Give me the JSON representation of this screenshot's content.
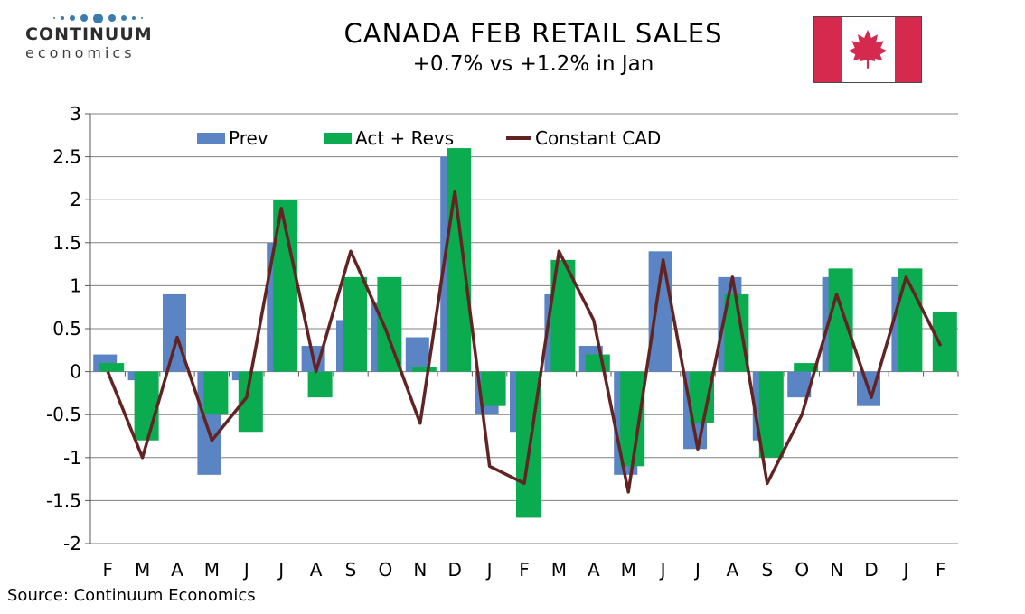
{
  "logo": {
    "line1": "CONTINUUM",
    "line2": "economics"
  },
  "header": {
    "title": "CANADA FEB RETAIL SALES",
    "subtitle": "+0.7% vs +1.2% in Jan"
  },
  "flag": {
    "name": "canada-flag",
    "red": "#d5294d",
    "white": "#ffffff"
  },
  "source": "Source: Continuum Economics",
  "chart_data": {
    "type": "combo",
    "categories": [
      "F",
      "M",
      "A",
      "M",
      "J",
      "J",
      "A",
      "S",
      "O",
      "N",
      "D",
      "J",
      "F",
      "M",
      "A",
      "M",
      "J",
      "J",
      "A",
      "S",
      "O",
      "N",
      "D",
      "J",
      "F"
    ],
    "series": [
      {
        "name": "Prev",
        "type": "bar",
        "color": "#5b84c4",
        "values": [
          0.2,
          -0.1,
          0.9,
          -1.2,
          -0.1,
          1.5,
          0.3,
          0.6,
          0.8,
          0.4,
          2.5,
          -0.5,
          -0.7,
          0.9,
          0.3,
          -1.2,
          1.4,
          -0.9,
          1.1,
          -0.8,
          -0.3,
          1.1,
          -0.4,
          1.1,
          null
        ]
      },
      {
        "name": "Act + Revs",
        "type": "bar",
        "color": "#0bab4f",
        "values": [
          0.1,
          -0.8,
          0,
          -0.5,
          -0.7,
          2.0,
          -0.3,
          1.1,
          1.1,
          0.05,
          2.6,
          -0.4,
          -1.7,
          1.3,
          0.2,
          -1.1,
          0,
          -0.6,
          0.9,
          -1.0,
          0.1,
          1.2,
          0,
          1.2,
          0.7
        ]
      },
      {
        "name": "Constant CAD",
        "type": "line",
        "color": "#622423",
        "values": [
          0.0,
          -1.0,
          0.4,
          -0.8,
          -0.3,
          1.9,
          0.0,
          1.4,
          0.5,
          -0.6,
          2.1,
          -1.1,
          -1.3,
          1.4,
          0.6,
          -1.4,
          1.3,
          -0.9,
          1.1,
          -1.3,
          -0.5,
          0.9,
          -0.3,
          1.1,
          0.3
        ]
      }
    ],
    "ylim": [
      -2,
      3
    ],
    "ytick_step": 0.5,
    "y_tick_labels": [
      "3",
      "2.5",
      "2",
      "1.5",
      "1",
      "0.5",
      "0",
      "-0.5",
      "-1",
      "-1.5",
      "-2"
    ],
    "grid": true,
    "legend_position": "top-inside",
    "title": "CANADA FEB RETAIL SALES",
    "xlabel": "",
    "ylabel": ""
  }
}
